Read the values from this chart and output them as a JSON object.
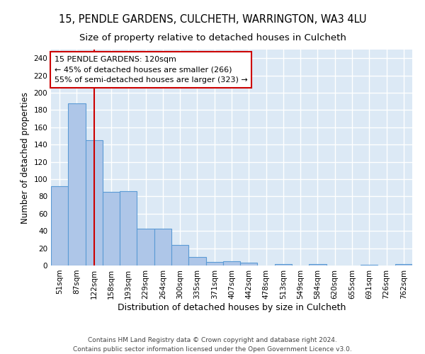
{
  "title1": "15, PENDLE GARDENS, CULCHETH, WARRINGTON, WA3 4LU",
  "title2": "Size of property relative to detached houses in Culcheth",
  "xlabel": "Distribution of detached houses by size in Culcheth",
  "ylabel": "Number of detached properties",
  "bar_values": [
    92,
    188,
    145,
    85,
    86,
    43,
    43,
    24,
    10,
    4,
    5,
    3,
    0,
    2,
    0,
    2,
    0,
    0,
    1,
    0,
    2
  ],
  "bar_labels": [
    "51sqm",
    "87sqm",
    "122sqm",
    "158sqm",
    "193sqm",
    "229sqm",
    "264sqm",
    "300sqm",
    "335sqm",
    "371sqm",
    "407sqm",
    "442sqm",
    "478sqm",
    "513sqm",
    "549sqm",
    "584sqm",
    "620sqm",
    "655sqm",
    "691sqm",
    "726sqm",
    "762sqm"
  ],
  "bar_color": "#aec6e8",
  "bar_edge_color": "#5b9bd5",
  "bar_edge_width": 0.8,
  "bg_color": "#dce9f5",
  "grid_color": "#ffffff",
  "vline_x": 2,
  "vline_color": "#cc0000",
  "vline_linewidth": 1.5,
  "annotation_text": "15 PENDLE GARDENS: 120sqm\n← 45% of detached houses are smaller (266)\n55% of semi-detached houses are larger (323) →",
  "annotation_box_color": "#cc0000",
  "annotation_bg": "#ffffff",
  "ylim": [
    0,
    250
  ],
  "yticks": [
    0,
    20,
    40,
    60,
    80,
    100,
    120,
    140,
    160,
    180,
    200,
    220,
    240
  ],
  "footer": "Contains HM Land Registry data © Crown copyright and database right 2024.\nContains public sector information licensed under the Open Government Licence v3.0.",
  "title1_fontsize": 10.5,
  "title2_fontsize": 9.5,
  "xlabel_fontsize": 9,
  "ylabel_fontsize": 8.5,
  "tick_fontsize": 7.5,
  "annotation_fontsize": 8,
  "footer_fontsize": 6.5
}
